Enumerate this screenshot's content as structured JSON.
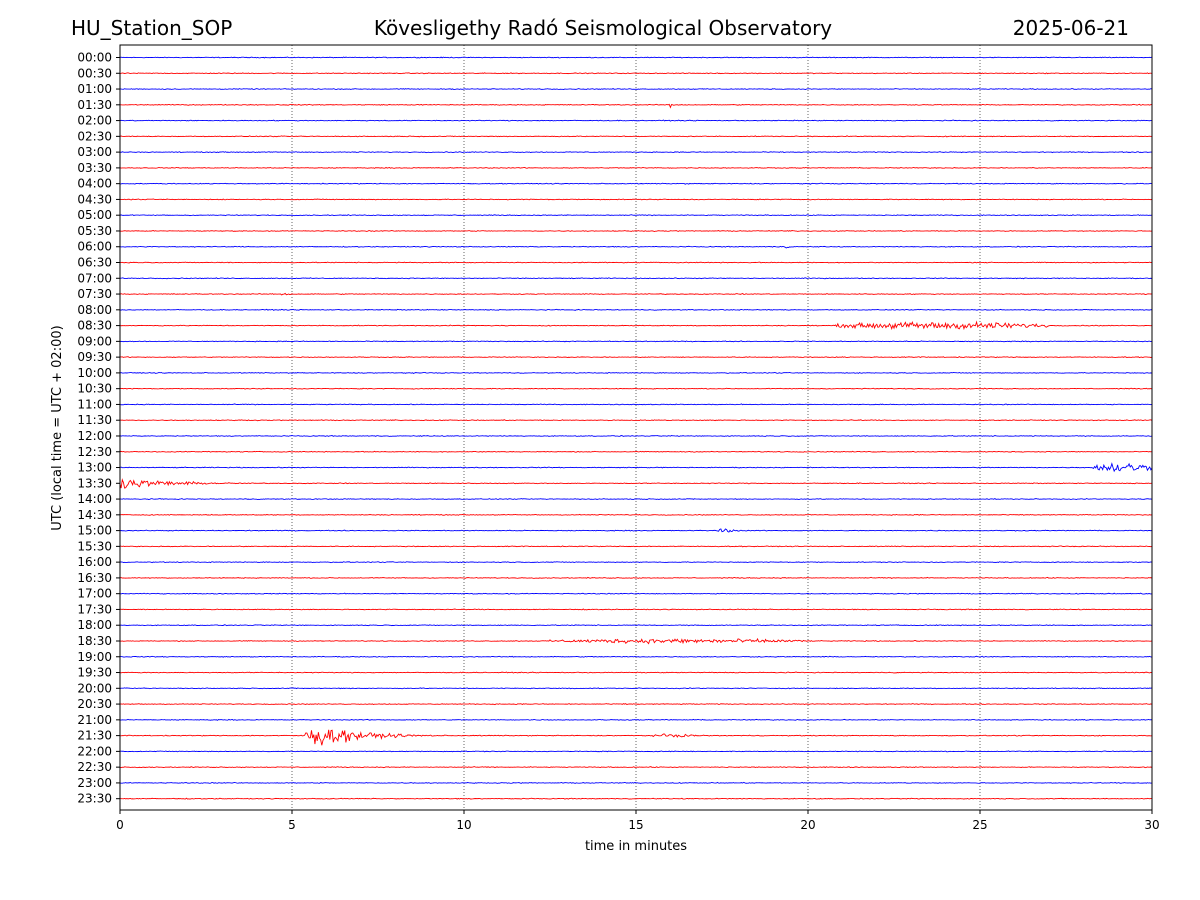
{
  "header": {
    "station": "HU_Station_SOP",
    "observatory": "Kövesligethy Radó Seismological Observatory",
    "date": "2025-06-21"
  },
  "chart_data": {
    "type": "line",
    "plot_kind": "helicorder",
    "xlabel": "time in minutes",
    "ylabel": "UTC (local time = UTC + 02:00)",
    "xlim": [
      0,
      30
    ],
    "x_ticks": [
      0,
      5,
      10,
      15,
      20,
      25,
      30
    ],
    "grid": "vertical dotted lines at x ticks",
    "trace_colors": [
      "#0000ff",
      "#ff0000"
    ],
    "rows": [
      "00:00",
      "00:30",
      "01:00",
      "01:30",
      "02:00",
      "02:30",
      "03:00",
      "03:30",
      "04:00",
      "04:30",
      "05:00",
      "05:30",
      "06:00",
      "06:30",
      "07:00",
      "07:30",
      "08:00",
      "08:30",
      "09:00",
      "09:30",
      "10:00",
      "10:30",
      "11:00",
      "11:30",
      "12:00",
      "12:30",
      "13:00",
      "13:30",
      "14:00",
      "14:30",
      "15:00",
      "15:30",
      "16:00",
      "16:30",
      "17:00",
      "17:30",
      "18:00",
      "18:30",
      "19:00",
      "19:30",
      "20:00",
      "20:30",
      "21:00",
      "21:30",
      "22:00",
      "22:30",
      "23:00",
      "23:30"
    ],
    "events": [
      {
        "row": "01:30",
        "start_min": 16.0,
        "end_min": 16.4,
        "amplitude": 0.45,
        "decay": 0.2
      },
      {
        "row": "06:00",
        "start_min": 19.2,
        "end_min": 19.6,
        "amplitude": 0.3,
        "decay": 0.3
      },
      {
        "row": "07:30",
        "start_min": 4.7,
        "end_min": 5.0,
        "amplitude": 0.35,
        "decay": 0.2
      },
      {
        "row": "08:30",
        "start_min": 20.8,
        "end_min": 27.0,
        "amplitude": 0.55,
        "decay": 0
      },
      {
        "row": "13:00",
        "start_min": 28.3,
        "end_min": 30.0,
        "amplitude": 0.8,
        "decay": 0
      },
      {
        "row": "13:30",
        "start_min": 0.0,
        "end_min": 4.0,
        "amplitude": 0.85,
        "decay": 1.5
      },
      {
        "row": "15:00",
        "start_min": 17.4,
        "end_min": 18.3,
        "amplitude": 0.5,
        "decay": 0.4
      },
      {
        "row": "18:30",
        "start_min": 12.5,
        "end_min": 20.0,
        "amplitude": 0.35,
        "decay": 0
      },
      {
        "row": "20:00",
        "start_min": 12.9,
        "end_min": 13.3,
        "amplitude": 0.4,
        "decay": 0.2
      },
      {
        "row": "21:30",
        "start_min": 5.4,
        "end_min": 13.0,
        "amplitude": 2.2,
        "decay": 1.2
      },
      {
        "row": "21:30",
        "start_min": 15.5,
        "end_min": 16.8,
        "amplitude": 0.25,
        "decay": 0
      }
    ]
  }
}
